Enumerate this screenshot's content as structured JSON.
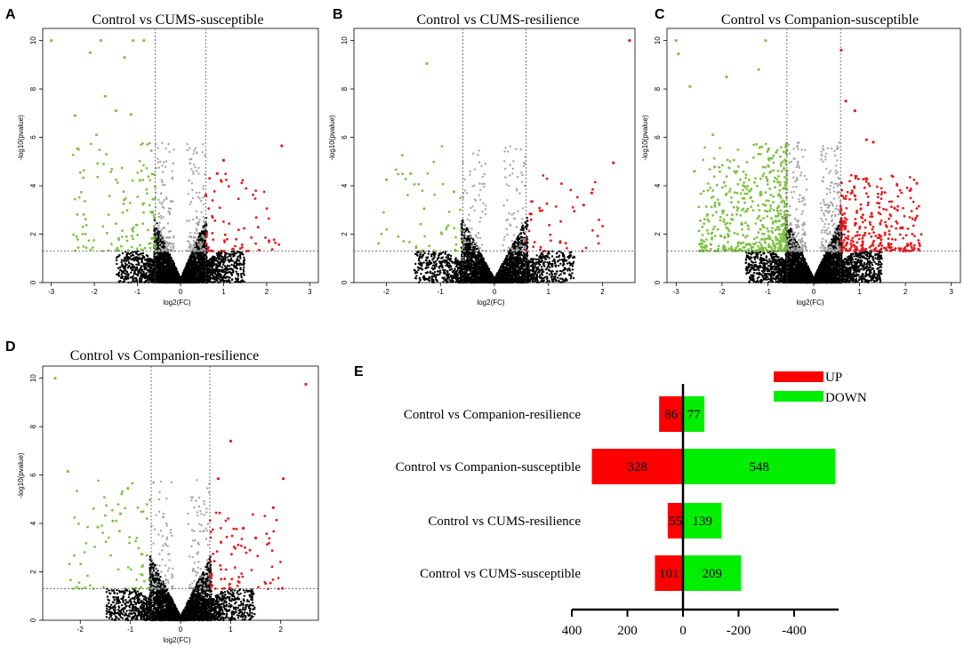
{
  "panels": [
    {
      "label": "A",
      "title": "Control vs CUMS-susceptible"
    },
    {
      "label": "B",
      "title": "Control vs CUMS-resilience"
    },
    {
      "label": "C",
      "title": "Control vs Companion-susceptible"
    },
    {
      "label": "D",
      "title": "Control vs Companion-resilience"
    },
    {
      "label": "E"
    }
  ],
  "chart_data": [
    {
      "type": "scatter",
      "panel": "A",
      "title": "Control vs CUMS-susceptible",
      "xlabel": "log2(FC)",
      "ylabel": "-log10(pvalue)",
      "xlim": [
        -3.2,
        3.2
      ],
      "ylim": [
        0,
        10.5
      ],
      "xticks": [
        "-3",
        "-2",
        "-1",
        "0",
        "1",
        "2",
        "3"
      ],
      "yticks": [
        "0",
        "2",
        "4",
        "6",
        "8",
        "10"
      ],
      "fc_cut": 0.585,
      "p_line": 1.3,
      "colors": {
        "up": "#e8191b",
        "down": "#7ec242",
        "ns_gray": "#a5a5a5",
        "ns_black": "#000000"
      },
      "density": {
        "black": 2600,
        "gray": 260,
        "up": 70,
        "down": 130
      },
      "outliers_up": [
        [
          2.35,
          5.65
        ],
        [
          1.0,
          5.05
        ],
        [
          0.85,
          4.5
        ]
      ],
      "outliers_down": [
        [
          -3.0,
          10.0
        ],
        [
          -2.1,
          9.5
        ],
        [
          -1.85,
          10.0
        ],
        [
          -1.1,
          10.0
        ],
        [
          -0.85,
          10.0
        ],
        [
          -1.75,
          7.7
        ],
        [
          -1.5,
          7.1
        ],
        [
          -2.45,
          6.9
        ],
        [
          -1.15,
          6.95
        ],
        [
          -1.95,
          6.1
        ],
        [
          -1.3,
          9.3
        ]
      ]
    },
    {
      "type": "scatter",
      "panel": "B",
      "title": "Control vs CUMS-resilience",
      "xlabel": "log2(FC)",
      "ylabel": "-log10(pvalue)",
      "xlim": [
        -2.6,
        2.6
      ],
      "ylim": [
        0,
        10.5
      ],
      "xticks": [
        "-2",
        "-1",
        "0",
        "1",
        "2"
      ],
      "yticks": [
        "0",
        "2",
        "4",
        "6",
        "8",
        "10"
      ],
      "fc_cut": 0.585,
      "p_line": 1.3,
      "colors": {
        "up": "#e8191b",
        "down": "#7ec242",
        "ns_gray": "#a5a5a5",
        "ns_black": "#000000"
      },
      "density": {
        "black": 2300,
        "gray": 150,
        "up": 45,
        "down": 45
      },
      "outliers_up": [
        [
          2.5,
          10.0
        ],
        [
          2.2,
          4.95
        ],
        [
          1.8,
          3.7
        ],
        [
          1.65,
          3.2
        ]
      ],
      "outliers_down": [
        [
          -1.25,
          9.05
        ],
        [
          -2.0,
          4.25
        ],
        [
          -1.55,
          4.5
        ],
        [
          -1.3,
          3.05
        ],
        [
          -0.75,
          3.75
        ]
      ]
    },
    {
      "type": "scatter",
      "panel": "C",
      "title": "Control vs Companion-susceptible",
      "xlabel": "log2(FC)",
      "ylabel": "-log10(pvalue)",
      "xlim": [
        -3.2,
        3.2
      ],
      "ylim": [
        0,
        10.5
      ],
      "xticks": [
        "-3",
        "-2",
        "-1",
        "0",
        "1",
        "2",
        "3"
      ],
      "yticks": [
        "0",
        "2",
        "4",
        "6",
        "8",
        "10"
      ],
      "fc_cut": 0.585,
      "p_line": 1.3,
      "colors": {
        "up": "#e8191b",
        "down": "#7ec242",
        "ns_gray": "#a5a5a5",
        "ns_black": "#000000"
      },
      "density": {
        "black": 3200,
        "gray": 350,
        "up": 330,
        "down": 550
      },
      "outliers_up": [
        [
          2.25,
          4.1
        ],
        [
          2.1,
          3.8
        ],
        [
          0.6,
          9.6
        ],
        [
          0.7,
          7.5
        ],
        [
          0.9,
          7.1
        ],
        [
          1.3,
          5.8
        ],
        [
          1.15,
          5.9
        ]
      ],
      "outliers_down": [
        [
          -3.0,
          10.0
        ],
        [
          -2.95,
          9.45
        ],
        [
          -2.7,
          8.1
        ],
        [
          -1.9,
          8.5
        ],
        [
          -1.05,
          10.0
        ],
        [
          -1.2,
          8.8
        ],
        [
          -2.2,
          6.1
        ],
        [
          -2.6,
          4.6
        ]
      ]
    },
    {
      "type": "scatter",
      "panel": "D",
      "title": "Control vs Companion-resilience",
      "xlabel": "log2(FC)",
      "ylabel": "-log10(pvalue)",
      "xlim": [
        -2.75,
        2.75
      ],
      "ylim": [
        0,
        10.5
      ],
      "xticks": [
        "-2",
        "-1",
        "0",
        "1",
        "2"
      ],
      "yticks": [
        "0",
        "2",
        "4",
        "6",
        "8",
        "10"
      ],
      "fc_cut": 0.585,
      "p_line": 1.3,
      "colors": {
        "up": "#e8191b",
        "down": "#7ec242",
        "ns_gray": "#a5a5a5",
        "ns_black": "#000000"
      },
      "density": {
        "black": 2500,
        "gray": 170,
        "up": 80,
        "down": 70
      },
      "outliers_up": [
        [
          2.5,
          9.75
        ],
        [
          2.05,
          5.85
        ],
        [
          1.85,
          4.65
        ],
        [
          1.0,
          7.4
        ],
        [
          0.75,
          5.85
        ],
        [
          1.5,
          3.4
        ],
        [
          1.25,
          3.8
        ]
      ],
      "outliers_down": [
        [
          -2.5,
          10.0
        ],
        [
          -2.25,
          6.15
        ],
        [
          -1.05,
          5.45
        ],
        [
          -1.65,
          3.85
        ],
        [
          -1.2,
          4.4
        ],
        [
          -1.35,
          4.1
        ]
      ]
    },
    {
      "type": "bar",
      "panel": "E",
      "orientation": "horizontal-diverging",
      "categories": [
        "Control vs Companion-resilience",
        "Control vs Companion-susceptible",
        "Control vs CUMS-resilience",
        "Control vs CUMS-susceptible"
      ],
      "series": [
        {
          "name": "UP",
          "color": "#ff0000",
          "values": [
            86,
            328,
            55,
            101
          ]
        },
        {
          "name": "DOWN",
          "color": "#00ee00",
          "values": [
            77,
            548,
            139,
            209
          ]
        }
      ],
      "value_labels": {
        "UP": [
          "86",
          "328",
          "55",
          "101"
        ],
        "DOWN": [
          "77",
          "548",
          "139",
          "209"
        ]
      },
      "xticks": [
        "400",
        "200",
        "0",
        "-200",
        "-400"
      ],
      "xlim": [
        400,
        -560
      ],
      "legend": "top-right"
    }
  ]
}
